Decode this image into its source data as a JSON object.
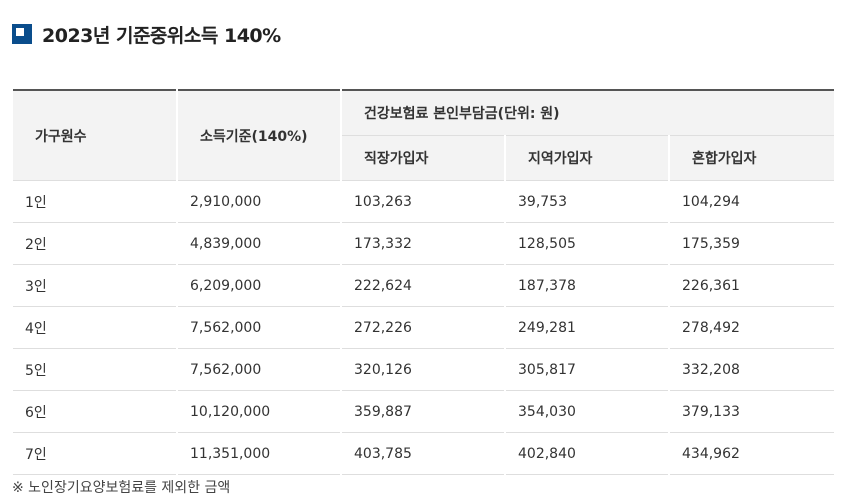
{
  "title": "2023년 기준중위소득 140%",
  "table": {
    "headers": {
      "household": "가구원수",
      "income": "소득기준(140%)",
      "premium_group": "건강보험료 본인부담금(단위: 원)",
      "employee": "직장가입자",
      "regional": "지역가입자",
      "mixed": "혼합가입자"
    },
    "rows": [
      {
        "household": "1인",
        "income": "2,910,000",
        "employee": "103,263",
        "regional": "39,753",
        "mixed": "104,294"
      },
      {
        "household": "2인",
        "income": "4,839,000",
        "employee": "173,332",
        "regional": "128,505",
        "mixed": "175,359"
      },
      {
        "household": "3인",
        "income": "6,209,000",
        "employee": "222,624",
        "regional": "187,378",
        "mixed": "226,361"
      },
      {
        "household": "4인",
        "income": "7,562,000",
        "employee": "272,226",
        "regional": "249,281",
        "mixed": "278,492"
      },
      {
        "household": "5인",
        "income": "7,562,000",
        "employee": "320,126",
        "regional": "305,817",
        "mixed": "332,208"
      },
      {
        "household": "6인",
        "income": "10,120,000",
        "employee": "359,887",
        "regional": "354,030",
        "mixed": "379,133"
      },
      {
        "household": "7인",
        "income": "11,351,000",
        "employee": "403,785",
        "regional": "402,840",
        "mixed": "434,962"
      }
    ]
  },
  "footnote": "※ 노인장기요양보험료를 제외한 금액",
  "colors": {
    "accent": "#0a4d8c",
    "header_bg": "#f3f3f3",
    "border": "#dedede"
  }
}
